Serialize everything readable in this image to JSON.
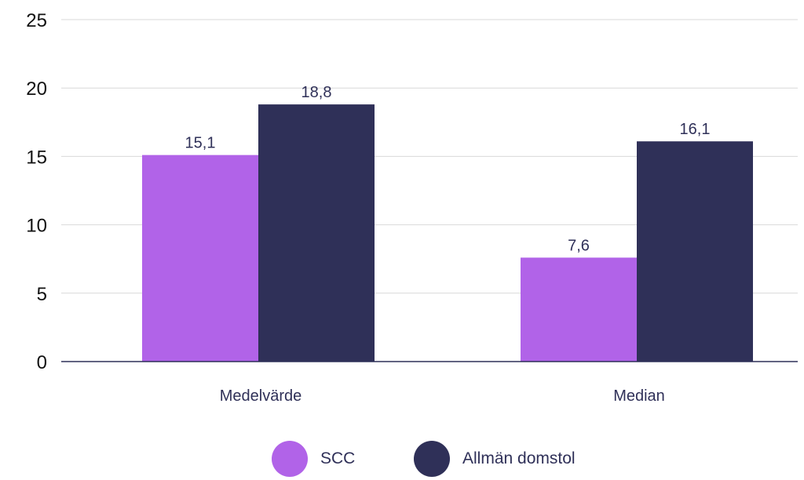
{
  "chart_data": {
    "type": "bar",
    "categories": [
      "Medelvärde",
      "Median"
    ],
    "series": [
      {
        "name": "SCC",
        "values": [
          15.1,
          7.6
        ],
        "labels": [
          "15,1",
          "7,6"
        ],
        "color": "#b163e8"
      },
      {
        "name": "Allmän domstol",
        "values": [
          18.8,
          16.1
        ],
        "labels": [
          "18,8",
          "16,1"
        ],
        "color": "#2f3058"
      }
    ],
    "ylim": [
      0,
      25
    ],
    "yticks": [
      0,
      5,
      10,
      15,
      20,
      25
    ],
    "grid": true,
    "legend_position": "bottom-center",
    "title": "",
    "xlabel": "",
    "ylabel": ""
  }
}
